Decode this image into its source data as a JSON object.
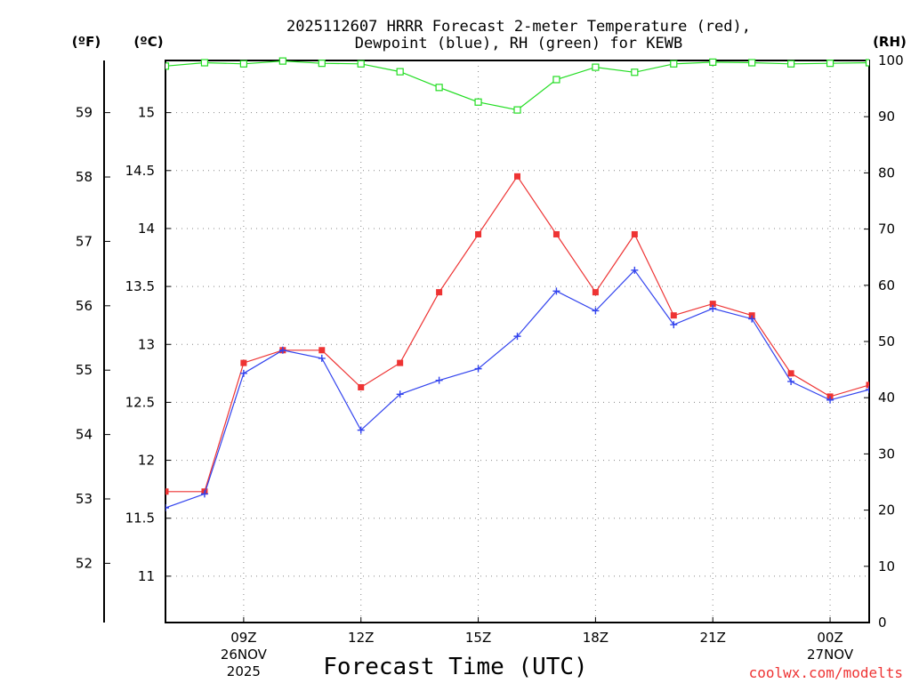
{
  "chart_data": {
    "type": "line",
    "title_line1": "2025112607 HRRR Forecast 2-meter Temperature (red),",
    "title_line2": "Dewpoint (blue), RH (green) for KEWB",
    "xlabel": "Forecast Time (UTC)",
    "credit": "coolwx.com/modelts",
    "units": {
      "left_outer": "(ºF)",
      "left_inner": "(ºC)",
      "right": "(RH)"
    },
    "x_hours": [
      7,
      8,
      9,
      10,
      11,
      12,
      13,
      14,
      15,
      16,
      17,
      18,
      19,
      20,
      21,
      22,
      23,
      24,
      25
    ],
    "xlim": [
      7,
      25
    ],
    "x_ticks": [
      {
        "hour": 9,
        "label": "09Z"
      },
      {
        "hour": 12,
        "label": "12Z"
      },
      {
        "hour": 15,
        "label": "15Z"
      },
      {
        "hour": 18,
        "label": "18Z"
      },
      {
        "hour": 21,
        "label": "21Z"
      },
      {
        "hour": 24,
        "label": "00Z"
      }
    ],
    "date_labels": [
      {
        "hour": 9,
        "line1": "26NOV",
        "line2": "2025"
      },
      {
        "hour": 24,
        "line1": "27NOV",
        "line2": ""
      }
    ],
    "celsius_axis": {
      "range": [
        10.6,
        15.45
      ],
      "ticks": [
        "11",
        "11.5",
        "12",
        "12.5",
        "13",
        "13.5",
        "14",
        "14.5",
        "15"
      ]
    },
    "fahrenheit_axis": {
      "ticks": [
        "52",
        "53",
        "54",
        "55",
        "56",
        "57",
        "58",
        "59"
      ]
    },
    "rh_axis": {
      "range": [
        0,
        100
      ],
      "ticks": [
        "0",
        "10",
        "20",
        "30",
        "40",
        "50",
        "60",
        "70",
        "80",
        "90",
        "100"
      ]
    },
    "series": [
      {
        "name": "Temperature",
        "color": "#ee3333",
        "marker": "filled-square",
        "axis": "celsius",
        "values": [
          11.73,
          11.73,
          12.84,
          12.95,
          12.95,
          12.63,
          12.84,
          13.45,
          13.95,
          14.45,
          13.95,
          13.45,
          13.95,
          13.25,
          13.35,
          13.25,
          12.75,
          12.55,
          12.65
        ]
      },
      {
        "name": "Dewpoint",
        "color": "#3344ee",
        "marker": "plus",
        "axis": "celsius",
        "values": [
          11.59,
          11.71,
          12.75,
          12.95,
          12.88,
          12.26,
          12.57,
          12.69,
          12.79,
          13.07,
          13.46,
          13.29,
          13.64,
          13.17,
          13.31,
          13.22,
          12.68,
          12.52,
          12.61
        ]
      },
      {
        "name": "RH",
        "color": "#22dd22",
        "marker": "open-square",
        "axis": "rh",
        "values": [
          99.0,
          99.6,
          99.4,
          99.9,
          99.5,
          99.4,
          98.0,
          95.2,
          92.6,
          91.2,
          96.6,
          98.8,
          97.9,
          99.4,
          99.7,
          99.6,
          99.4,
          99.5,
          99.6
        ]
      }
    ]
  }
}
